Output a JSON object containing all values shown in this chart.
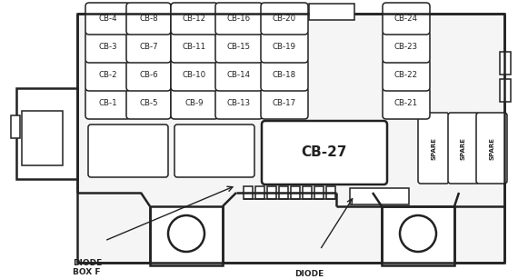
{
  "bg_color": "#ffffff",
  "line_color": "#222222",
  "fig_w": 5.7,
  "fig_h": 3.07,
  "dpi": 100,
  "fuse_grid": [
    [
      "CB-1",
      "CB-5",
      "CB-9",
      "CB-13",
      "CB-17",
      "CB-21"
    ],
    [
      "CB-2",
      "CB-6",
      "CB-10",
      "CB-14",
      "CB-18",
      "CB-22"
    ],
    [
      "CB-3",
      "CB-7",
      "CB-11",
      "CB-15",
      "CB-19",
      "CB-23"
    ],
    [
      "CB-4",
      "CB-8",
      "CB-12",
      "CB-16",
      "CB-20",
      "CB-24"
    ]
  ],
  "spare_labels": [
    "SPARE",
    "SPARE",
    "SPARE"
  ],
  "cb27_label": "CB-27",
  "diode_box_f": "DIODE\nBOX F",
  "diode_box_g": "DIODE\nBOX G"
}
